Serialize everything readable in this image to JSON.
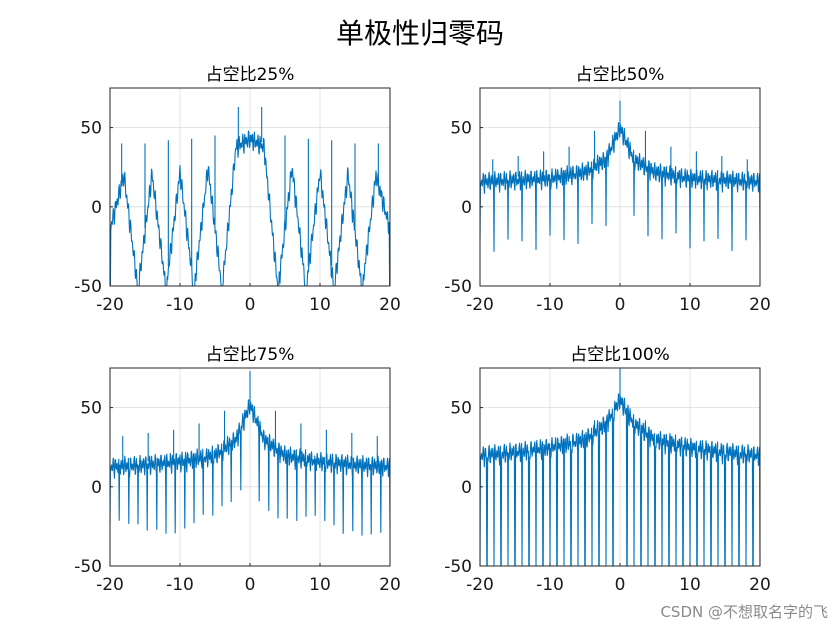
{
  "figure": {
    "suptitle": "单极性归零码",
    "watermark": "CSDN @不想取名字的飞"
  },
  "style": {
    "line_color": "#0072BD",
    "grid_color": "#dcdcdc",
    "axis_color": "#262626"
  },
  "chart_data": [
    {
      "type": "line",
      "title": "占空比25%",
      "xlabel": "",
      "ylabel": "",
      "xlim": [
        -20,
        20
      ],
      "ylim": [
        -50,
        75
      ],
      "xticks": [
        "-20",
        "-10",
        "0",
        "10",
        "20"
      ],
      "yticks": [
        "-50",
        "0",
        "50"
      ],
      "grid": true,
      "series": [
        {
          "x": [
            -20,
            -18,
            -16,
            -14,
            -12,
            -10,
            -8,
            -6,
            -4,
            -2,
            0,
            2,
            4,
            6,
            8,
            10,
            12,
            14,
            16,
            18,
            20
          ],
          "peak": [
            -12,
            22,
            -50,
            23,
            -50,
            24,
            -50,
            27,
            -50,
            40,
            45,
            40,
            -50,
            27,
            -50,
            24,
            -50,
            23,
            -50,
            22,
            -12
          ],
          "spikes": [
            40,
            40,
            42,
            43,
            45,
            63,
            63,
            45,
            43,
            42,
            40,
            40
          ]
        }
      ]
    },
    {
      "type": "line",
      "title": "占空比50%",
      "xlabel": "",
      "ylabel": "",
      "xlim": [
        -20,
        20
      ],
      "ylim": [
        -50,
        75
      ],
      "xticks": [
        "-20",
        "-10",
        "0",
        "10",
        "20"
      ],
      "yticks": [
        "-50",
        "0",
        "50"
      ],
      "grid": true,
      "series": [
        {
          "x": [
            -20,
            -15,
            -10,
            -5,
            -2,
            0,
            2,
            5,
            10,
            15,
            20
          ],
          "peak": [
            18,
            19,
            20,
            24,
            32,
            52,
            32,
            24,
            20,
            19,
            18
          ],
          "spikes": [
            30,
            32,
            35,
            38,
            48,
            67,
            48,
            38,
            35,
            32,
            30
          ]
        }
      ]
    },
    {
      "type": "line",
      "title": "占空比75%",
      "xlabel": "",
      "ylabel": "",
      "xlim": [
        -20,
        20
      ],
      "ylim": [
        -50,
        75
      ],
      "xticks": [
        "-20",
        "-10",
        "0",
        "10",
        "20"
      ],
      "yticks": [
        "-50",
        "0",
        "50"
      ],
      "grid": true,
      "series": [
        {
          "x": [
            -20,
            -15,
            -10,
            -5,
            -2,
            0,
            2,
            5,
            10,
            15,
            20
          ],
          "peak": [
            15,
            16,
            18,
            22,
            32,
            54,
            32,
            22,
            18,
            16,
            15
          ],
          "spikes": [
            32,
            34,
            36,
            40,
            48,
            73,
            48,
            40,
            36,
            34,
            32
          ]
        }
      ]
    },
    {
      "type": "line",
      "title": "占空比100%",
      "xlabel": "",
      "ylabel": "",
      "xlim": [
        -20,
        20
      ],
      "ylim": [
        -50,
        75
      ],
      "xticks": [
        "-20",
        "-10",
        "0",
        "10",
        "20"
      ],
      "yticks": [
        "-50",
        "0",
        "50"
      ],
      "grid": true,
      "series": [
        {
          "x": [
            -20,
            -15,
            -10,
            -5,
            -2,
            0,
            2,
            5,
            10,
            15,
            20
          ],
          "peak": [
            22,
            24,
            27,
            32,
            42,
            57,
            42,
            32,
            27,
            24,
            22
          ],
          "spikes": [
            22,
            24,
            27,
            32,
            42,
            75,
            42,
            32,
            27,
            24,
            22
          ]
        }
      ]
    }
  ]
}
